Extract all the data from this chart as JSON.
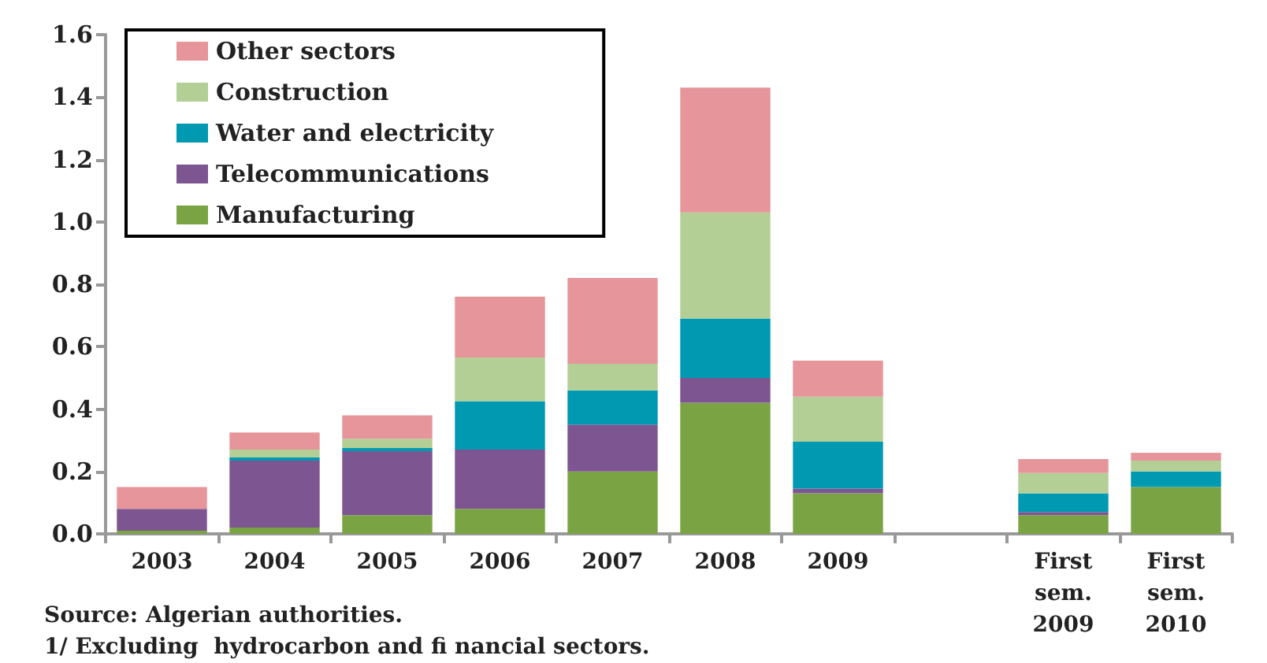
{
  "chart_data": {
    "type": "bar",
    "stacked": true,
    "categories": [
      "2003",
      "2004",
      "2005",
      "2006",
      "2007",
      "2008",
      "2009",
      null,
      "First sem. 2009",
      "First sem. 2010"
    ],
    "series": [
      {
        "name": "Manufacturing",
        "color": "#7aa444",
        "values": [
          0.01,
          0.02,
          0.06,
          0.08,
          0.2,
          0.42,
          0.13,
          null,
          0.06,
          0.15
        ]
      },
      {
        "name": "Telecommunications",
        "color": "#7d5591",
        "values": [
          0.07,
          0.215,
          0.205,
          0.19,
          0.15,
          0.08,
          0.015,
          null,
          0.01,
          0
        ]
      },
      {
        "name": "Water and electricity",
        "color": "#0099b2",
        "values": [
          0,
          0.01,
          0.01,
          0.155,
          0.11,
          0.19,
          0.15,
          null,
          0.06,
          0.05
        ]
      },
      {
        "name": "Construction",
        "color": "#b3cf95",
        "values": [
          0,
          0.025,
          0.03,
          0.14,
          0.085,
          0.34,
          0.145,
          null,
          0.065,
          0.035
        ]
      },
      {
        "name": "Other sectors",
        "color": "#e6959a",
        "values": [
          0.07,
          0.055,
          0.075,
          0.195,
          0.275,
          0.4,
          0.115,
          null,
          0.045,
          0.025
        ]
      }
    ],
    "ylim": [
      0,
      1.6
    ],
    "yticks": [
      {
        "value": 0,
        "label": "0.0"
      },
      0.2,
      0.4,
      0.6,
      0.8,
      {
        "value": 1,
        "label": "1.0"
      },
      1.2,
      1.4,
      1.6
    ],
    "grid": false,
    "legend": "top left",
    "annotations": [
      "Source: Algerian authorities.",
      "1/ Excluding  hydrocarbon and fi nancial sectors."
    ]
  }
}
